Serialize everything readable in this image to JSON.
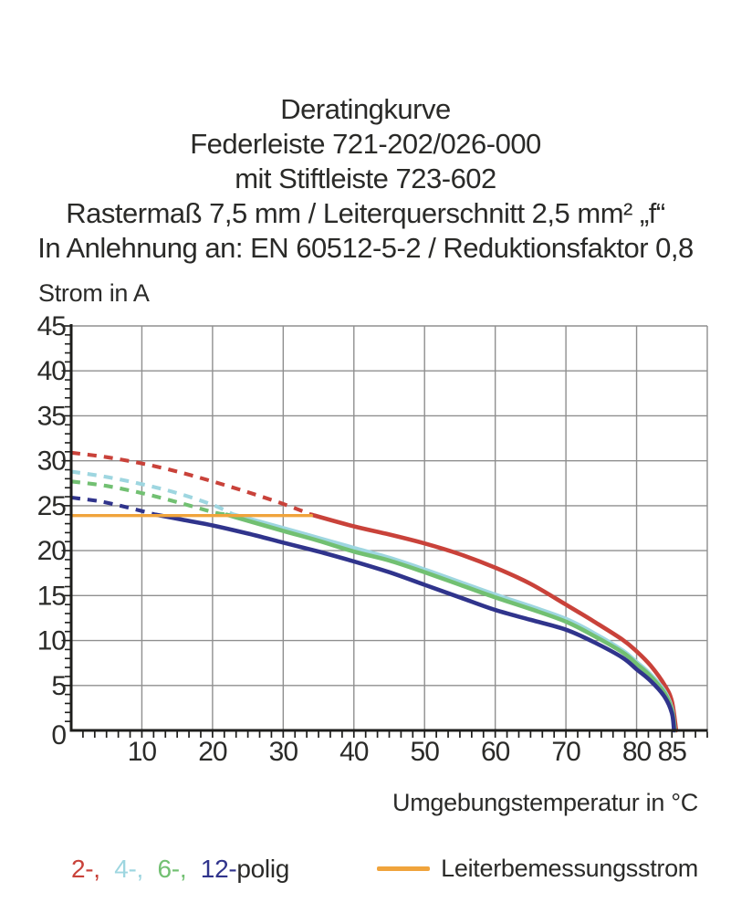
{
  "title": {
    "lines": [
      "Deratingkurve",
      "Federleiste 721-202/026-000",
      "mit Stiftleiste 723-602",
      "Rastermaß 7,5 mm / Leiterquerschnitt 2,5 mm² „f“",
      "In Anlehnung an: EN 60512-5-2 / Reduktionsfaktor 0,8"
    ]
  },
  "legend": {
    "poles": [
      {
        "label": "2-,",
        "color": "#c9423a"
      },
      {
        "label": "4-,",
        "color": "#9ed6e0"
      },
      {
        "label": "6-,",
        "color": "#72c072"
      },
      {
        "label": "12-",
        "color": "#30348c"
      }
    ],
    "poles_suffix": "polig",
    "rated_current_label": "Leiterbemessungsstrom",
    "rated_current_color": "#f0a43c"
  },
  "chart_data": {
    "type": "line",
    "title": "Deratingkurve Federleiste 721-202/026-000 mit Stiftleiste 723-602",
    "xlabel": "Umgebungstemperatur in °C",
    "ylabel": "Strom in A",
    "xlim": [
      0,
      90
    ],
    "ylim": [
      0,
      45
    ],
    "x_major_ticks": [
      10,
      20,
      30,
      40,
      50,
      60,
      70,
      80,
      85
    ],
    "x_gridline_step": 10,
    "y_major_ticks": [
      0,
      5,
      10,
      15,
      20,
      25,
      30,
      35,
      40,
      45
    ],
    "grid": true,
    "colors": {
      "grid": "#8f8f8f",
      "axis": "#1d1d1b",
      "text": "#2b2b29"
    },
    "series": [
      {
        "name": "2-polig",
        "color": "#c9423a",
        "dash_until": 34,
        "points": [
          [
            0,
            30.9
          ],
          [
            5,
            30.4
          ],
          [
            10,
            29.7
          ],
          [
            15,
            28.8
          ],
          [
            20,
            27.7
          ],
          [
            25,
            26.5
          ],
          [
            30,
            25.2
          ],
          [
            34,
            24.0
          ],
          [
            40,
            22.7
          ],
          [
            45,
            21.8
          ],
          [
            50,
            20.8
          ],
          [
            55,
            19.6
          ],
          [
            60,
            18.1
          ],
          [
            65,
            16.3
          ],
          [
            70,
            14.0
          ],
          [
            74,
            12.1
          ],
          [
            78,
            10.1
          ],
          [
            80,
            8.8
          ],
          [
            82,
            7.2
          ],
          [
            84,
            5.0
          ],
          [
            85,
            3.2
          ],
          [
            85.6,
            0
          ]
        ]
      },
      {
        "name": "4-polig",
        "color": "#9ed6e0",
        "dash_until": 23,
        "points": [
          [
            0,
            28.8
          ],
          [
            5,
            28.2
          ],
          [
            10,
            27.4
          ],
          [
            15,
            26.4
          ],
          [
            20,
            25.1
          ],
          [
            23,
            24.0
          ],
          [
            30,
            22.5
          ],
          [
            35,
            21.4
          ],
          [
            40,
            20.3
          ],
          [
            45,
            19.2
          ],
          [
            50,
            17.9
          ],
          [
            55,
            16.5
          ],
          [
            60,
            15.1
          ],
          [
            65,
            13.8
          ],
          [
            70,
            12.4
          ],
          [
            74,
            10.8
          ],
          [
            78,
            8.9
          ],
          [
            80,
            7.6
          ],
          [
            82,
            6.2
          ],
          [
            84,
            4.3
          ],
          [
            85,
            2.4
          ],
          [
            85.4,
            0
          ]
        ]
      },
      {
        "name": "6-polig",
        "color": "#72c072",
        "dash_until": 22,
        "points": [
          [
            0,
            27.7
          ],
          [
            5,
            27.2
          ],
          [
            10,
            26.4
          ],
          [
            15,
            25.4
          ],
          [
            20,
            24.3
          ],
          [
            22,
            24.0
          ],
          [
            30,
            22.2
          ],
          [
            35,
            21.1
          ],
          [
            40,
            19.9
          ],
          [
            45,
            18.9
          ],
          [
            50,
            17.6
          ],
          [
            55,
            16.2
          ],
          [
            60,
            14.8
          ],
          [
            65,
            13.5
          ],
          [
            70,
            12.1
          ],
          [
            74,
            10.5
          ],
          [
            78,
            8.7
          ],
          [
            80,
            7.4
          ],
          [
            82,
            6.0
          ],
          [
            84,
            4.1
          ],
          [
            85,
            2.2
          ],
          [
            85.4,
            0
          ]
        ]
      },
      {
        "name": "12-polig",
        "color": "#30348c",
        "dash_until": 12,
        "points": [
          [
            0,
            25.9
          ],
          [
            4,
            25.5
          ],
          [
            8,
            24.8
          ],
          [
            12,
            24.0
          ],
          [
            16,
            23.4
          ],
          [
            20,
            22.8
          ],
          [
            25,
            21.9
          ],
          [
            30,
            20.9
          ],
          [
            35,
            19.9
          ],
          [
            40,
            18.8
          ],
          [
            45,
            17.6
          ],
          [
            50,
            16.2
          ],
          [
            55,
            14.8
          ],
          [
            60,
            13.4
          ],
          [
            65,
            12.3
          ],
          [
            70,
            11.2
          ],
          [
            74,
            9.8
          ],
          [
            78,
            8.1
          ],
          [
            80,
            6.8
          ],
          [
            82,
            5.5
          ],
          [
            84,
            3.7
          ],
          [
            85,
            1.9
          ],
          [
            85.3,
            0
          ]
        ]
      },
      {
        "name": "Leiterbemessungsstrom",
        "type": "limit",
        "color": "#f0a43c",
        "points": [
          [
            0,
            23.9
          ],
          [
            34,
            23.9
          ]
        ]
      }
    ]
  }
}
